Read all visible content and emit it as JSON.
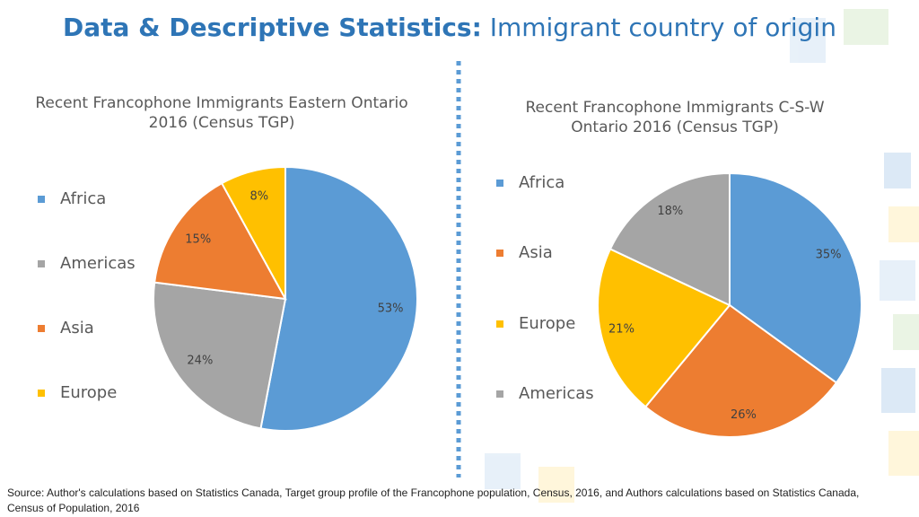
{
  "title_bold": "Data & Descriptive Statistics:",
  "title_rest": "Immigrant country of origin",
  "chart_data": [
    {
      "type": "pie",
      "title": "Recent Francophone Immigrants Eastern Ontario 2016 (Census TGP)",
      "categories": [
        "Africa",
        "Americas",
        "Asia",
        "Europe"
      ],
      "values": [
        53,
        24,
        15,
        8
      ],
      "value_labels": [
        "53%",
        "24%",
        "15%",
        "8%"
      ],
      "colors": [
        "#5b9bd5",
        "#a5a5a5",
        "#ed7d31",
        "#ffc000"
      ]
    },
    {
      "type": "pie",
      "title": "Recent Francophone Immigrants C-S-W Ontario 2016 (Census TGP)",
      "categories": [
        "Africa",
        "Asia",
        "Europe",
        "Americas"
      ],
      "values": [
        35,
        26,
        21,
        18
      ],
      "value_labels": [
        "35%",
        "26%",
        "21%",
        "18%"
      ],
      "colors": [
        "#5b9bd5",
        "#ed7d31",
        "#ffc000",
        "#a5a5a5"
      ]
    }
  ],
  "source": "Source: Author's calculations based on Statistics Canada, Target group profile of the Francophone population, Census, 2016, and Authors calculations based on Statistics Canada, Census of Population, 2016"
}
